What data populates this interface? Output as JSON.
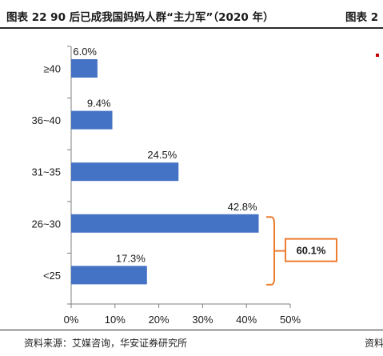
{
  "header": {
    "title_left": "图表 22 90 后已成我国妈妈人群“主力军”（2020 年）",
    "title_right": "图表 2"
  },
  "footer": {
    "source_left": "资料来源：艾媒咨询，华安证券研究所",
    "source_right": "资料"
  },
  "colors": {
    "bar": "#4472C4",
    "bracket": "#ED7D31",
    "marker": "#C00000"
  },
  "chart_data": {
    "type": "bar",
    "orientation": "horizontal",
    "categories": [
      "≥40",
      "36~40",
      "31~35",
      "26~30",
      "<25"
    ],
    "values": [
      6.0,
      9.4,
      24.5,
      42.8,
      17.3
    ],
    "data_labels": [
      "6.0%",
      "9.4%",
      "24.5%",
      "42.8%",
      "17.3%"
    ],
    "xlim": [
      0,
      50
    ],
    "x_ticks": [
      0,
      10,
      20,
      30,
      40,
      50
    ],
    "x_tick_labels": [
      "0%",
      "10%",
      "20%",
      "30%",
      "40%",
      "50%"
    ],
    "grid": false,
    "annotation": {
      "text": "60.1%",
      "spans_categories": [
        "26~30",
        "<25"
      ]
    }
  }
}
